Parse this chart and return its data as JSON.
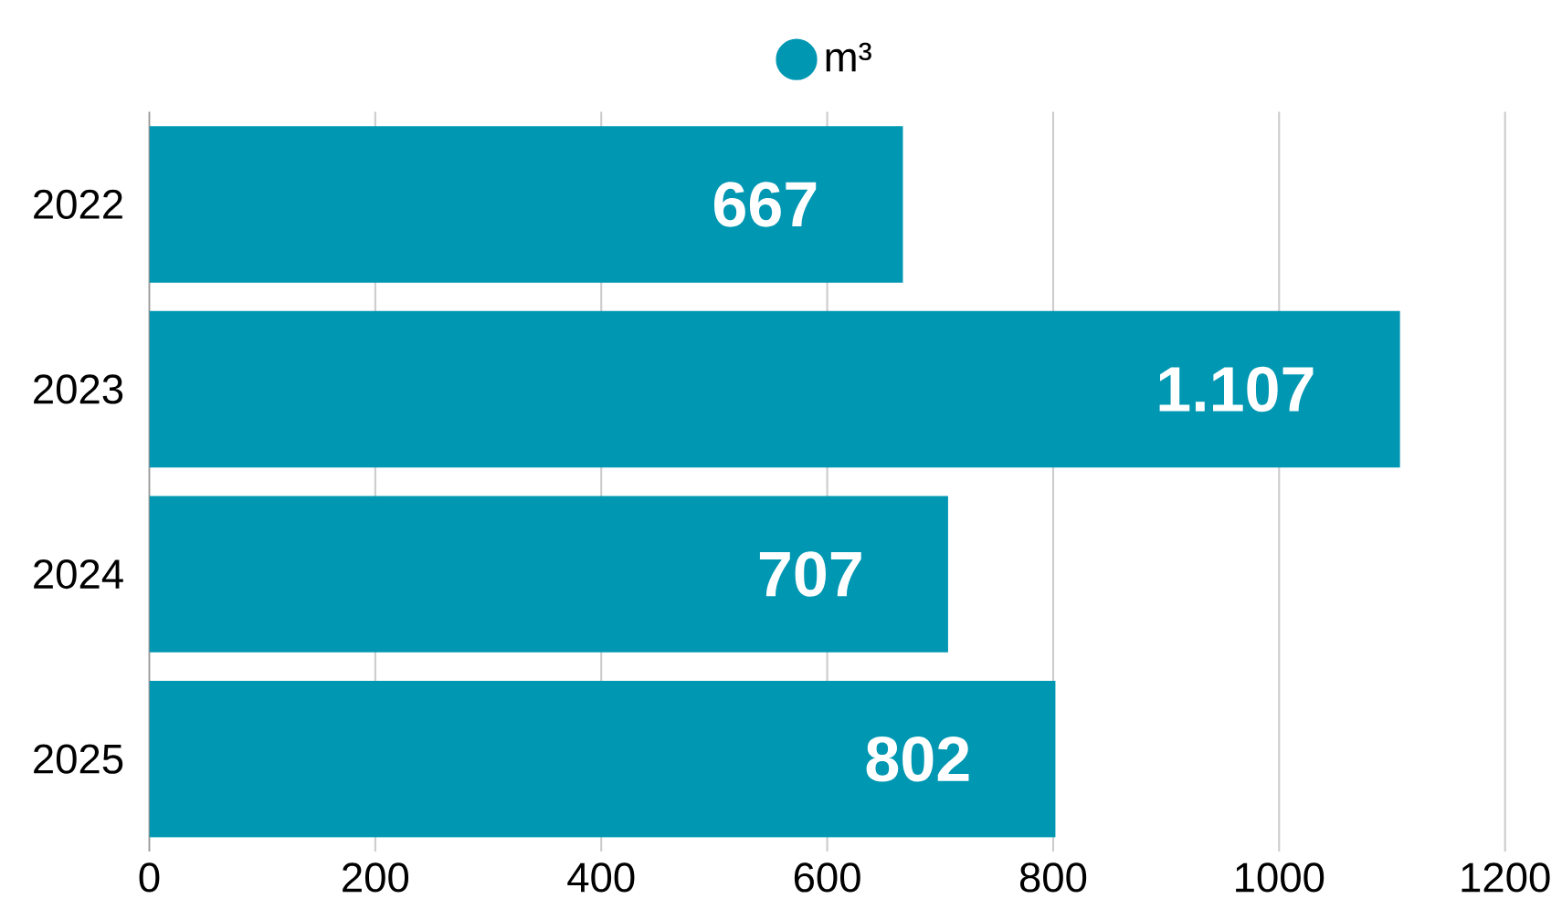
{
  "chart_data": {
    "type": "bar",
    "orientation": "horizontal",
    "categories": [
      "2022",
      "2023",
      "2024",
      "2025"
    ],
    "series": [
      {
        "name": "m³",
        "color": "#0097b2",
        "values": [
          667,
          1107,
          707,
          802
        ],
        "value_labels": [
          "667",
          "1.107",
          "707",
          "802"
        ]
      }
    ],
    "xlim": [
      0,
      1200
    ],
    "xticks": [
      0,
      200,
      400,
      600,
      800,
      1000,
      1200
    ],
    "grid": "x",
    "legend": "top"
  }
}
